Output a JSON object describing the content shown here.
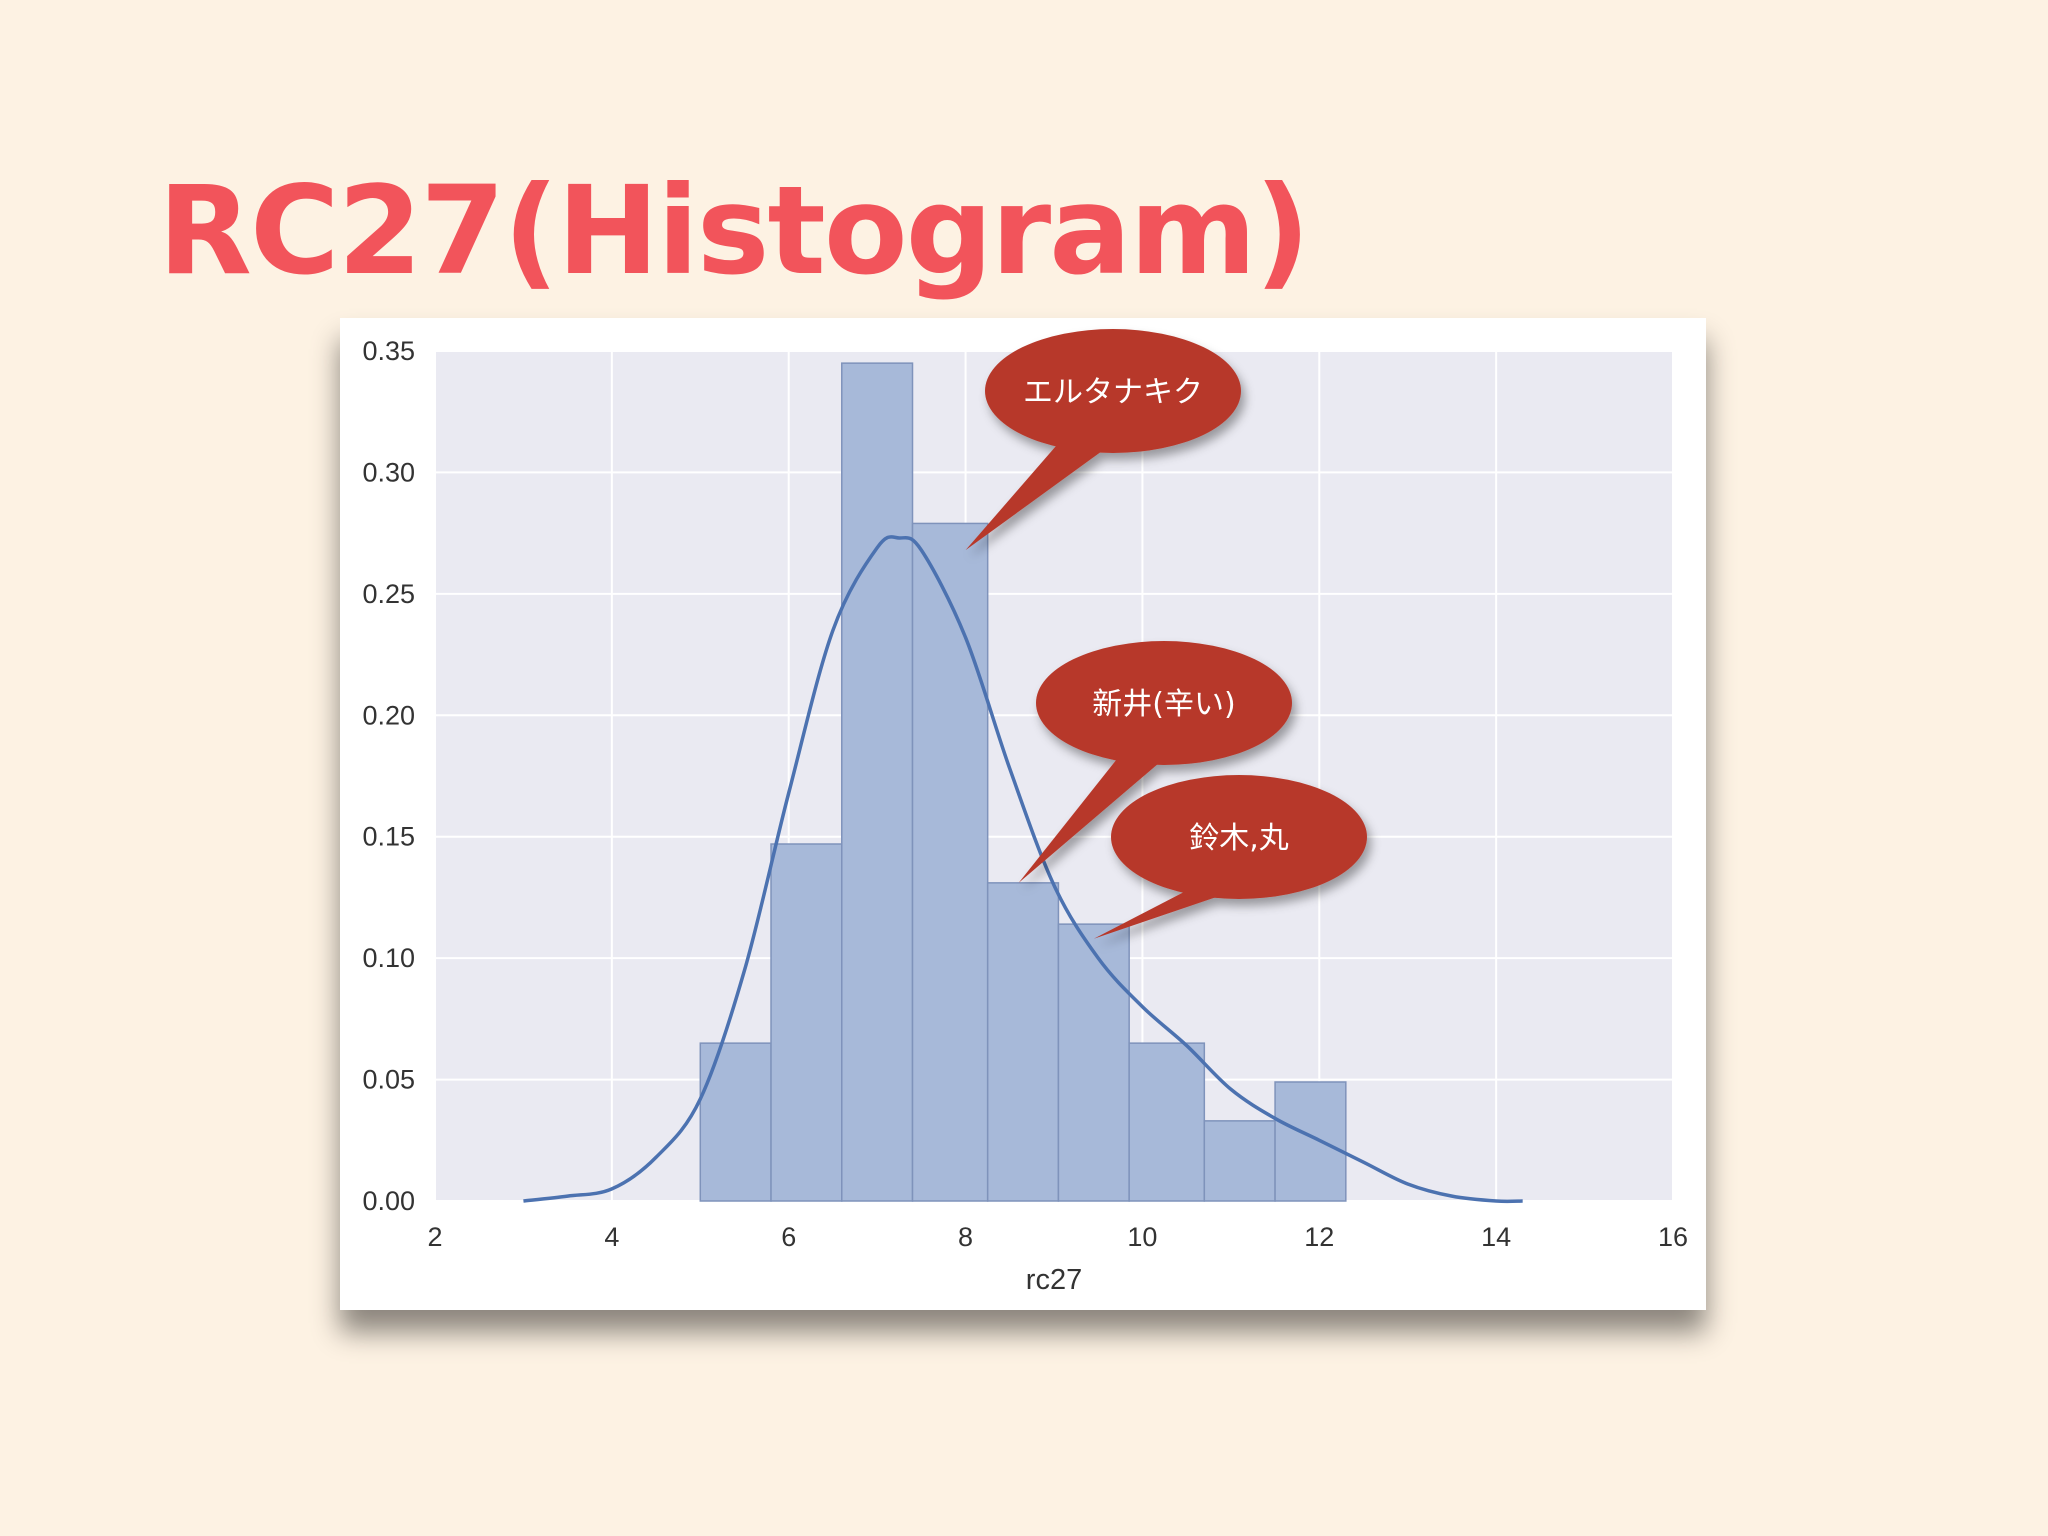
{
  "slide": {
    "title": "RC27(Histogram)"
  },
  "chart_data": {
    "type": "bar",
    "xlabel": "rc27",
    "ylabel": "",
    "xlim": [
      2,
      16
    ],
    "ylim": [
      0,
      0.35
    ],
    "xticks": [
      "2",
      "4",
      "6",
      "8",
      "10",
      "12",
      "14",
      "16"
    ],
    "yticks": [
      "0.00",
      "0.05",
      "0.10",
      "0.15",
      "0.20",
      "0.25",
      "0.30",
      "0.35"
    ],
    "grid": true,
    "bins": [
      {
        "start": 5.0,
        "end": 5.8,
        "value": 0.065
      },
      {
        "start": 5.8,
        "end": 6.6,
        "value": 0.147
      },
      {
        "start": 6.6,
        "end": 7.4,
        "value": 0.345
      },
      {
        "start": 7.4,
        "end": 8.25,
        "value": 0.279
      },
      {
        "start": 8.25,
        "end": 9.05,
        "value": 0.131
      },
      {
        "start": 9.05,
        "end": 9.85,
        "value": 0.114
      },
      {
        "start": 9.85,
        "end": 10.7,
        "value": 0.065
      },
      {
        "start": 10.7,
        "end": 11.5,
        "value": 0.033
      },
      {
        "start": 11.5,
        "end": 12.3,
        "value": 0.049
      }
    ],
    "kde": {
      "x": [
        3.0,
        3.5,
        4.0,
        4.5,
        5.0,
        5.5,
        6.0,
        6.5,
        7.0,
        7.25,
        7.5,
        8.0,
        8.5,
        9.0,
        9.5,
        10.0,
        10.5,
        11.0,
        11.5,
        12.0,
        12.5,
        13.0,
        13.5,
        14.0,
        14.3
      ],
      "y": [
        0.0,
        0.002,
        0.005,
        0.018,
        0.042,
        0.095,
        0.168,
        0.235,
        0.269,
        0.273,
        0.268,
        0.232,
        0.178,
        0.13,
        0.1,
        0.08,
        0.064,
        0.046,
        0.034,
        0.025,
        0.016,
        0.007,
        0.002,
        0.0,
        0.0
      ]
    },
    "colors": {
      "bar_fill": "#a7b9d9",
      "bar_edge": "#7f93bb",
      "kde_line": "#4c72b0",
      "plot_bg": "#eaeaf2",
      "grid": "#ffffff",
      "callout": "#b7392b"
    }
  },
  "annotations": [
    {
      "text": "エルタナキク",
      "target_x": 8.0,
      "target_y": 0.268
    },
    {
      "text": "新井(辛い)",
      "target_x": 8.6,
      "target_y": 0.131
    },
    {
      "text": "鈴木,丸",
      "target_x": 9.45,
      "target_y": 0.108
    }
  ]
}
